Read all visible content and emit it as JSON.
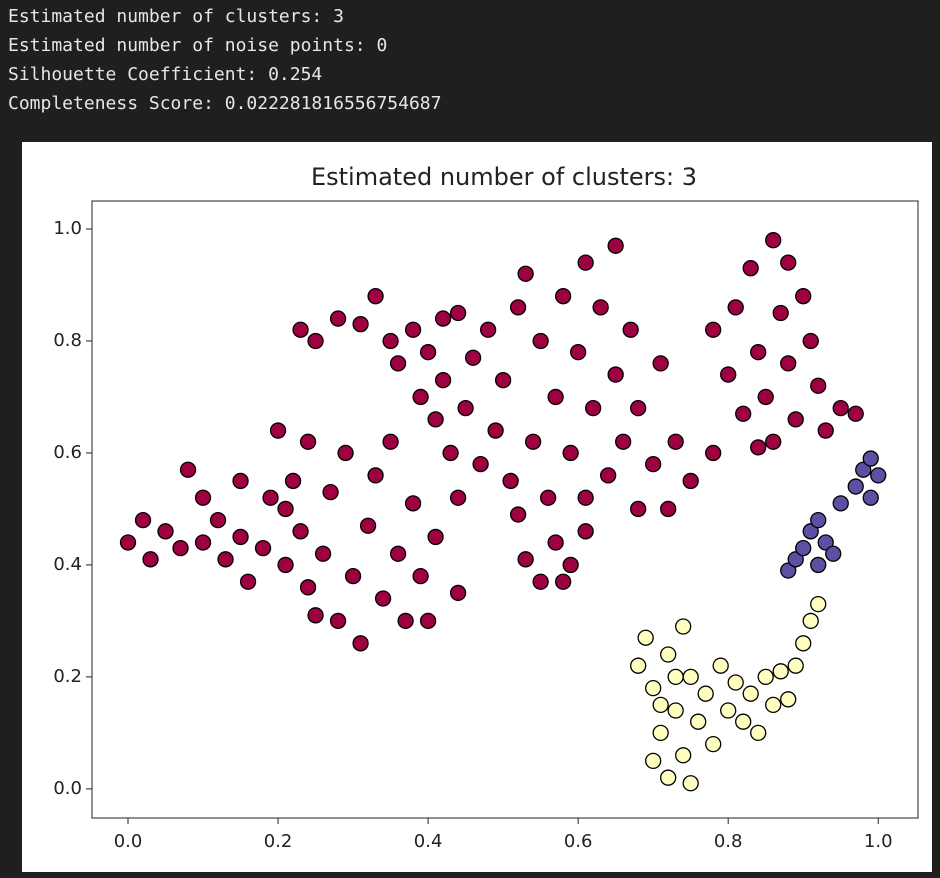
{
  "output": {
    "lines": [
      "Estimated number of clusters: 3",
      "Estimated number of noise points: 0",
      "Silhouette Coefficient: 0.254",
      "Completeness Score: 0.022281816556754687"
    ]
  },
  "chart_data": {
    "type": "scatter",
    "title": "Estimated number of clusters: 3",
    "xlim": [
      -0.048,
      1.053
    ],
    "ylim": [
      -0.052,
      1.05
    ],
    "xticks": [
      {
        "value": 0,
        "label": "0.0"
      },
      0.2,
      0.4,
      0.6,
      0.8,
      {
        "value": 1,
        "label": "1.0"
      }
    ],
    "yticks": [
      {
        "value": 0,
        "label": "0.0"
      },
      0.2,
      0.4,
      0.6,
      0.8,
      {
        "value": 1,
        "label": "1.0"
      }
    ],
    "grid": false,
    "series": [
      {
        "color": "#9e0142",
        "x": [
          0.0,
          0.02,
          0.03,
          0.05,
          0.07,
          0.08,
          0.1,
          0.1,
          0.12,
          0.13,
          0.15,
          0.15,
          0.16,
          0.18,
          0.19,
          0.21,
          0.21,
          0.22,
          0.23,
          0.24,
          0.25,
          0.26,
          0.27,
          0.28,
          0.29,
          0.3,
          0.31,
          0.32,
          0.33,
          0.34,
          0.35,
          0.36,
          0.37,
          0.38,
          0.39,
          0.4,
          0.41,
          0.2,
          0.24,
          0.44,
          0.23,
          0.25,
          0.28,
          0.31,
          0.33,
          0.35,
          0.36,
          0.38,
          0.4,
          0.42,
          0.44,
          0.39,
          0.41,
          0.42,
          0.43,
          0.44,
          0.45,
          0.46,
          0.47,
          0.48,
          0.49,
          0.5,
          0.51,
          0.52,
          0.52,
          0.53,
          0.54,
          0.55,
          0.56,
          0.57,
          0.58,
          0.59,
          0.6,
          0.61,
          0.61,
          0.62,
          0.63,
          0.64,
          0.65,
          0.65,
          0.66,
          0.67,
          0.68,
          0.68,
          0.7,
          0.71,
          0.72,
          0.73,
          0.75,
          0.78,
          0.53,
          0.55,
          0.57,
          0.59,
          0.61,
          0.58,
          0.78,
          0.8,
          0.81,
          0.82,
          0.83,
          0.84,
          0.85,
          0.86,
          0.86,
          0.87,
          0.88,
          0.88,
          0.89,
          0.9,
          0.91,
          0.92,
          0.93,
          0.95,
          0.97,
          0.84
        ],
        "y": [
          0.44,
          0.48,
          0.41,
          0.46,
          0.43,
          0.57,
          0.52,
          0.44,
          0.48,
          0.41,
          0.55,
          0.45,
          0.37,
          0.43,
          0.52,
          0.5,
          0.4,
          0.55,
          0.46,
          0.36,
          0.31,
          0.42,
          0.53,
          0.3,
          0.6,
          0.38,
          0.26,
          0.47,
          0.56,
          0.34,
          0.62,
          0.42,
          0.3,
          0.51,
          0.38,
          0.3,
          0.45,
          0.64,
          0.62,
          0.35,
          0.82,
          0.8,
          0.84,
          0.83,
          0.88,
          0.8,
          0.76,
          0.82,
          0.78,
          0.84,
          0.85,
          0.7,
          0.66,
          0.73,
          0.6,
          0.52,
          0.68,
          0.77,
          0.58,
          0.82,
          0.64,
          0.73,
          0.55,
          0.86,
          0.49,
          0.92,
          0.62,
          0.8,
          0.52,
          0.7,
          0.88,
          0.6,
          0.78,
          0.94,
          0.52,
          0.68,
          0.86,
          0.56,
          0.97,
          0.74,
          0.62,
          0.82,
          0.5,
          0.68,
          0.58,
          0.76,
          0.5,
          0.62,
          0.55,
          0.6,
          0.41,
          0.37,
          0.44,
          0.4,
          0.46,
          0.37,
          0.82,
          0.74,
          0.86,
          0.67,
          0.93,
          0.78,
          0.7,
          0.98,
          0.62,
          0.85,
          0.76,
          0.94,
          0.66,
          0.88,
          0.8,
          0.72,
          0.64,
          0.68,
          0.67,
          0.61
        ]
      },
      {
        "color": "#ffffbf",
        "x": [
          0.68,
          0.69,
          0.7,
          0.71,
          0.72,
          0.72,
          0.73,
          0.74,
          0.74,
          0.75,
          0.75,
          0.76,
          0.77,
          0.78,
          0.79,
          0.8,
          0.81,
          0.82,
          0.83,
          0.84,
          0.85,
          0.86,
          0.87,
          0.88,
          0.89,
          0.9,
          0.91,
          0.92,
          0.7,
          0.73,
          0.71
        ],
        "y": [
          0.22,
          0.27,
          0.18,
          0.1,
          0.02,
          0.24,
          0.14,
          0.06,
          0.29,
          0.2,
          0.01,
          0.12,
          0.17,
          0.08,
          0.22,
          0.14,
          0.19,
          0.12,
          0.17,
          0.1,
          0.2,
          0.15,
          0.21,
          0.16,
          0.22,
          0.26,
          0.3,
          0.33,
          0.05,
          0.2,
          0.15
        ]
      },
      {
        "color": "#5e4fa2",
        "x": [
          0.88,
          0.89,
          0.9,
          0.91,
          0.92,
          0.93,
          0.94,
          0.92,
          0.95,
          0.97,
          0.98,
          0.99,
          1.0,
          0.99
        ],
        "y": [
          0.39,
          0.41,
          0.43,
          0.46,
          0.48,
          0.44,
          0.42,
          0.4,
          0.51,
          0.54,
          0.57,
          0.59,
          0.56,
          0.52
        ]
      }
    ]
  }
}
